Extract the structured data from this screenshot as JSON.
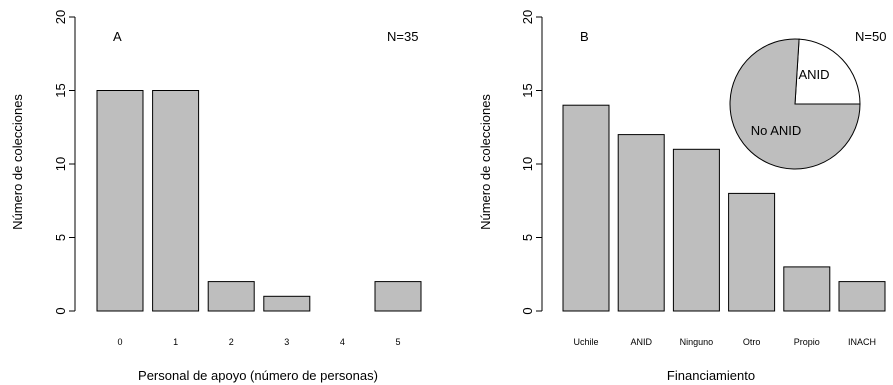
{
  "chart_data": [
    {
      "type": "bar",
      "panel": "A",
      "annotation": "N=35",
      "categories": [
        "0",
        "1",
        "2",
        "3",
        "4",
        "5"
      ],
      "values": [
        15,
        15,
        2,
        1,
        0,
        2
      ],
      "xlabel": "Personal de apoyo (número de personas)",
      "ylabel": "Número de colecciones",
      "ylim": [
        0,
        20
      ],
      "yticks": [
        "0",
        "5",
        "10",
        "15",
        "20"
      ],
      "bar_color": "#bebebe"
    },
    {
      "type": "bar",
      "panel": "B",
      "annotation": "N=50",
      "categories": [
        "Uchile",
        "ANID",
        "Ninguno",
        "Otro",
        "Propio",
        "INACH"
      ],
      "values": [
        14,
        12,
        11,
        8,
        3,
        2
      ],
      "xlabel": "Financiamiento",
      "ylabel": "Número de colecciones",
      "ylim": [
        0,
        20
      ],
      "yticks": [
        "0",
        "5",
        "10",
        "15",
        "20"
      ],
      "bar_color": "#bebebe",
      "inset_pie": {
        "type": "pie",
        "slices": [
          {
            "label": "ANID",
            "value": 12,
            "color": "#ffffff"
          },
          {
            "label": "No ANID",
            "value": 38,
            "color": "#bebebe"
          }
        ]
      }
    }
  ]
}
